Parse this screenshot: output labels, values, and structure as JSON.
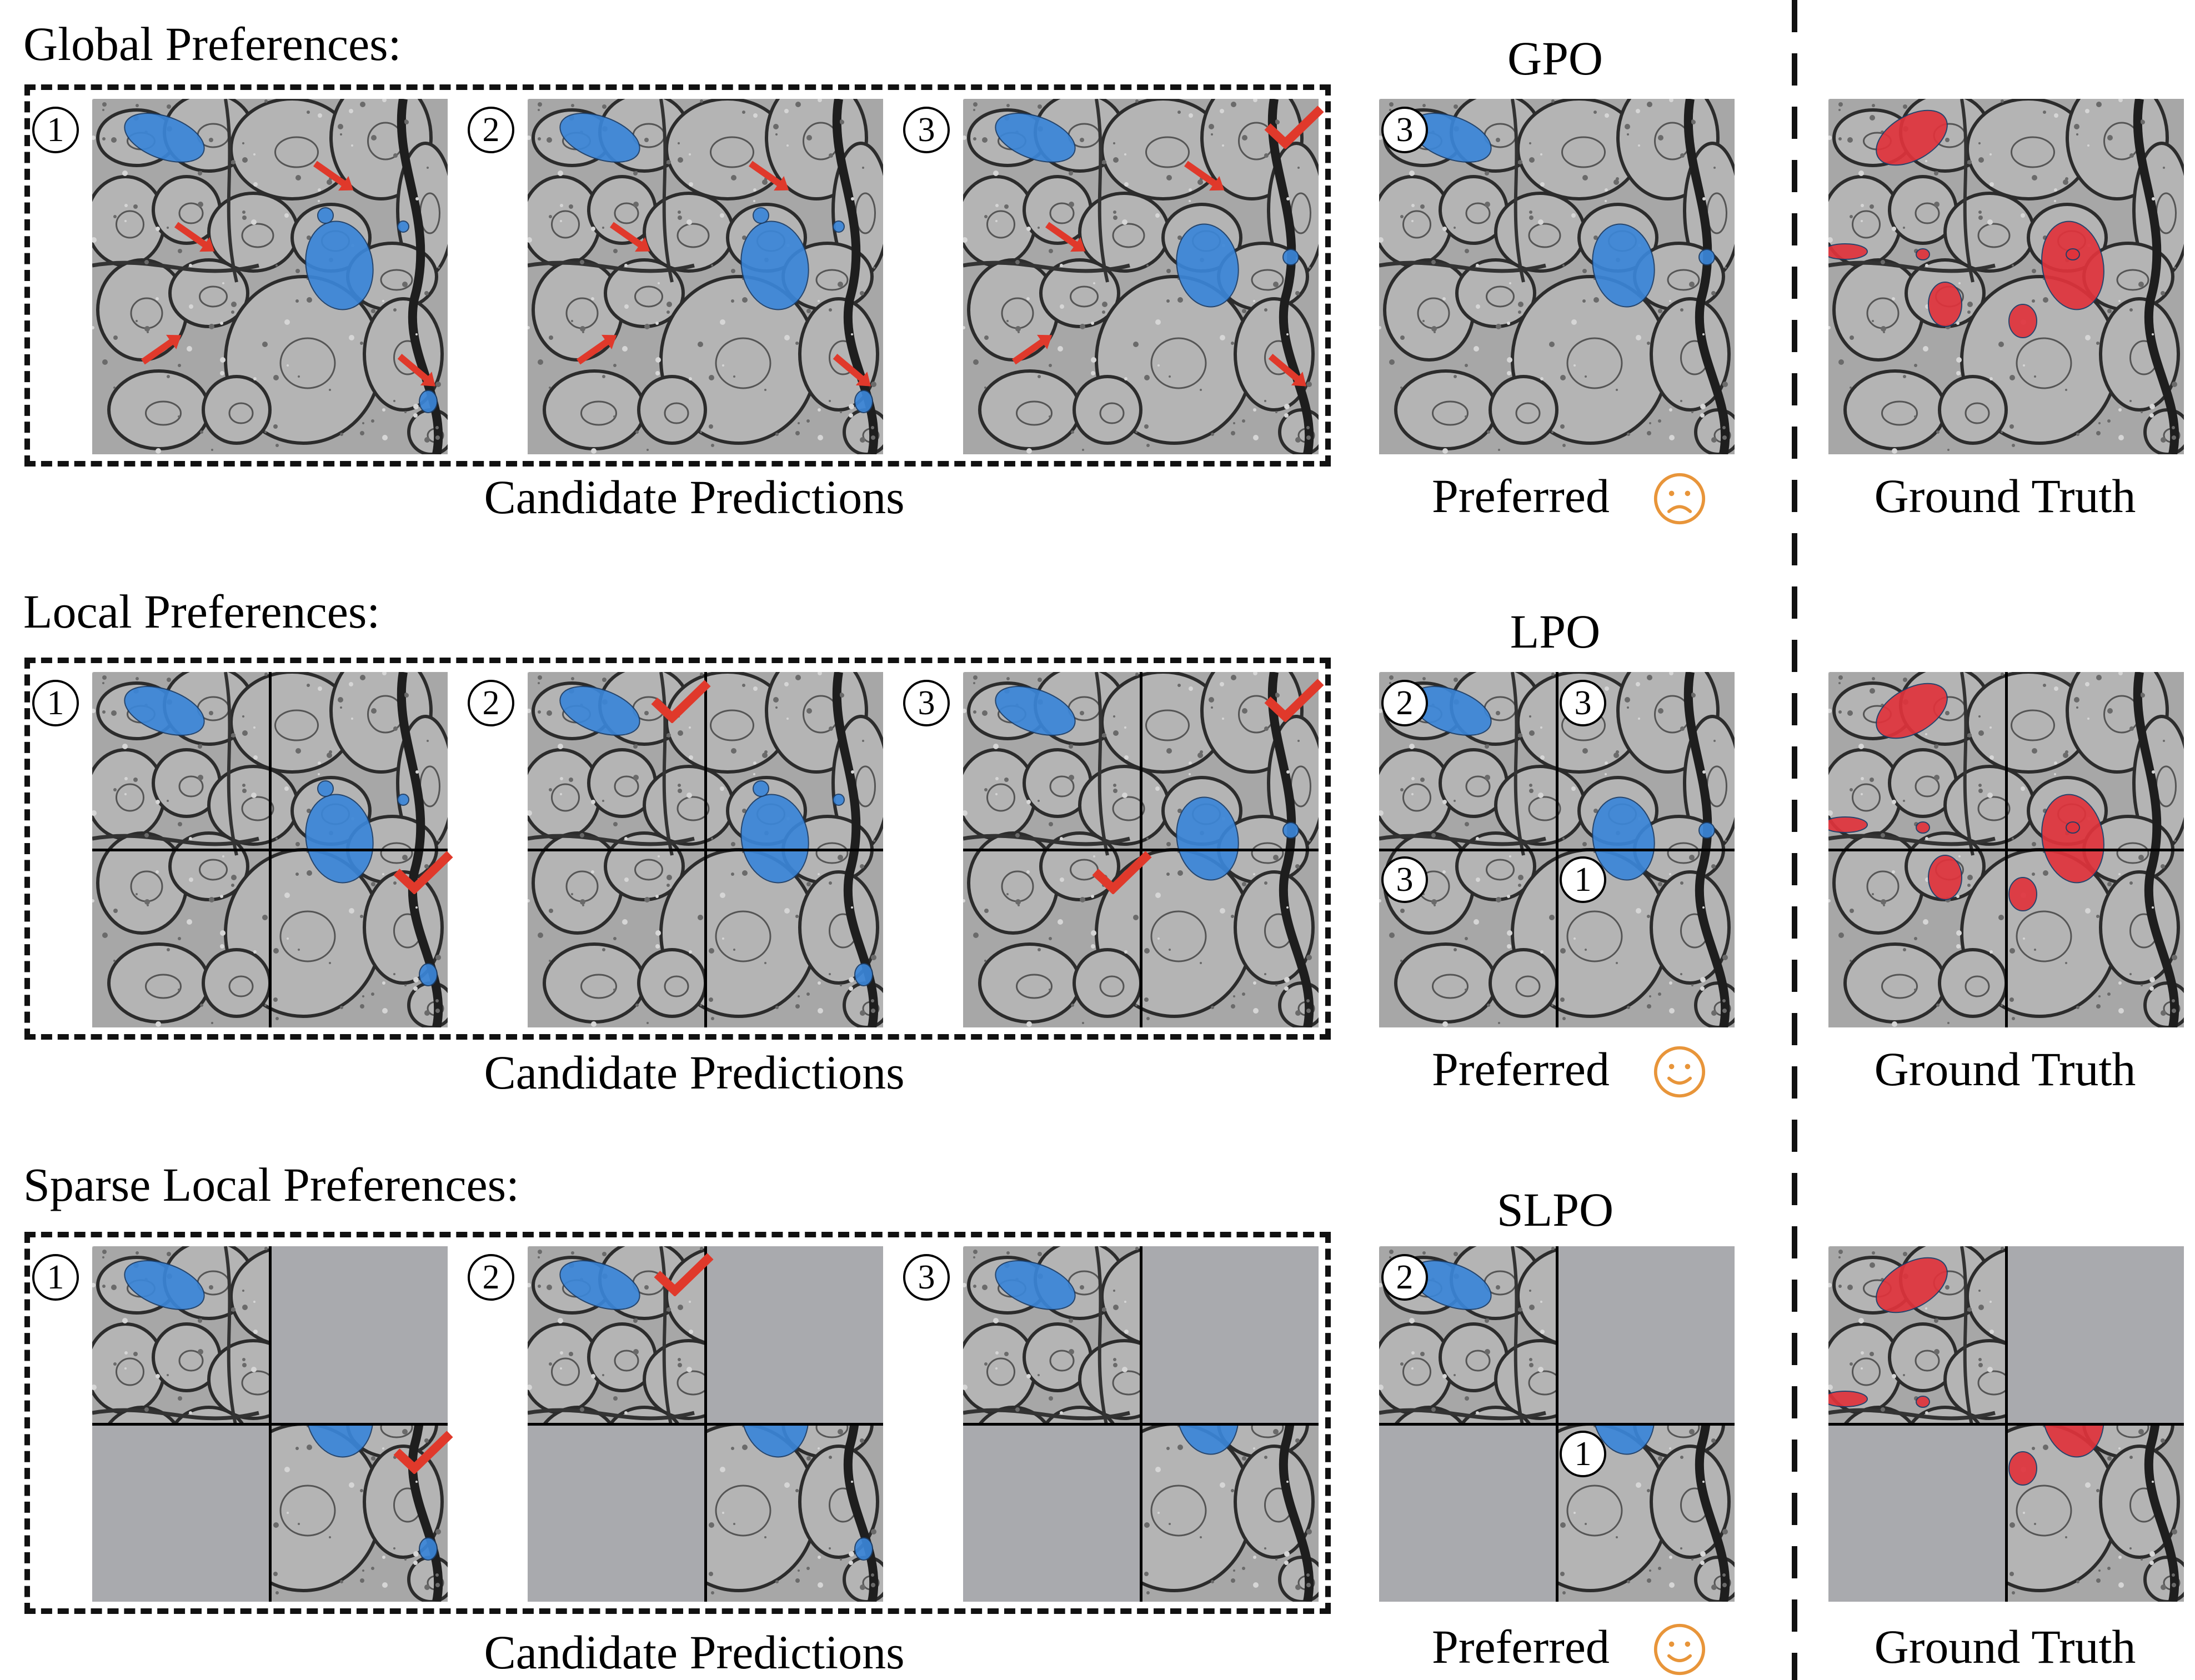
{
  "rows": [
    {
      "title": "Global Preferences:",
      "method": "GPO",
      "candidates_caption": "Candidate Predictions",
      "preferred_caption": "Preferred",
      "gt_caption": "Ground Truth",
      "face": "sad-face-icon"
    },
    {
      "title": "Local Preferences:",
      "method": "LPO",
      "candidates_caption": "Candidate Predictions",
      "preferred_caption": "Preferred",
      "gt_caption": "Ground Truth",
      "face": "smile-face-icon"
    },
    {
      "title": "Sparse Local Preferences:",
      "method": "SLPO",
      "candidates_caption": "Candidate Predictions",
      "preferred_caption": "Preferred",
      "gt_caption": "Ground Truth",
      "face": "smile-face-icon"
    }
  ],
  "candidate_numbers": [
    "1",
    "2",
    "3"
  ],
  "gpo_preferred_number": "3",
  "lpo_preferred_numbers": [
    "2",
    "3",
    "3",
    "1"
  ],
  "slpo_preferred_numbers": [
    "2",
    "1"
  ],
  "colors": {
    "prediction": "#3b86d8",
    "ground_truth": "#e0333c",
    "check": "#e0392b",
    "face": "#e8953a",
    "masked_quadrant": "#a9aaae"
  }
}
